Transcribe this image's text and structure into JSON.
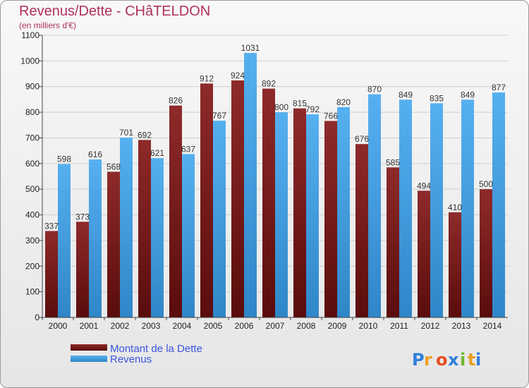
{
  "chart_data": {
    "type": "bar",
    "title": "Revenus/Dette - CHâTELDON",
    "subtitle": "(en milliers d'€)",
    "categories": [
      "2000",
      "2001",
      "2002",
      "2003",
      "2004",
      "2005",
      "2006",
      "2007",
      "2008",
      "2009",
      "2010",
      "2011",
      "2012",
      "2013",
      "2014"
    ],
    "series": [
      {
        "name": "Montant de la Dette",
        "color": "#8b1a1a",
        "values": [
          337,
          373,
          568,
          692,
          826,
          912,
          924,
          892,
          815,
          766,
          676,
          585,
          494,
          410,
          500
        ]
      },
      {
        "name": "Revenus",
        "color": "#4aa3e8",
        "values": [
          598,
          616,
          701,
          621,
          637,
          767,
          1031,
          800,
          792,
          820,
          870,
          849,
          835,
          849,
          877
        ]
      }
    ],
    "y_ticks": [
      0,
      100,
      200,
      300,
      400,
      500,
      600,
      700,
      800,
      900,
      1000,
      1100
    ],
    "ylim": [
      0,
      1100
    ],
    "grid": true,
    "legend_position": "bottom-left"
  },
  "logo": {
    "text": "Proxiti",
    "letter_colors": [
      "#2f7fd8",
      "#f0a020",
      "#e84c20",
      "#2f7fd8",
      "#6cb82c",
      "#e8a020",
      "#2f7fd8"
    ]
  }
}
